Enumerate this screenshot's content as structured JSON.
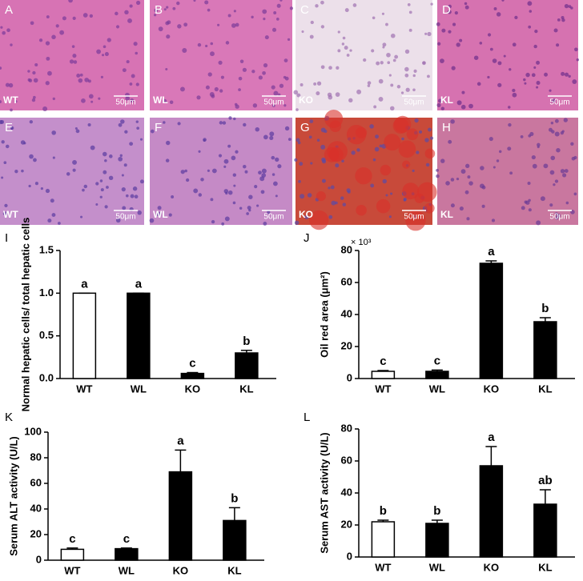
{
  "panels": [
    {
      "letter": "A",
      "group": "WT",
      "scale": "50μm"
    },
    {
      "letter": "B",
      "group": "WL",
      "scale": "50μm"
    },
    {
      "letter": "C",
      "group": "KO",
      "scale": "50μm"
    },
    {
      "letter": "D",
      "group": "KL",
      "scale": "50μm"
    },
    {
      "letter": "E",
      "group": "WT",
      "scale": "50μm"
    },
    {
      "letter": "F",
      "group": "WL",
      "scale": "50μm"
    },
    {
      "letter": "G",
      "group": "KO",
      "scale": "50μm"
    },
    {
      "letter": "H",
      "group": "KL",
      "scale": "50μm"
    }
  ],
  "chart_data": [
    {
      "type": "bar",
      "panel": "I",
      "ylabel": "Normal hepatic cells/ total hepatic cells",
      "categories": [
        "WT",
        "WL",
        "KO",
        "KL"
      ],
      "values": [
        1.0,
        1.0,
        0.06,
        0.3
      ],
      "errors": [
        0,
        0,
        0.01,
        0.03
      ],
      "letters": [
        "a",
        "a",
        "c",
        "b"
      ],
      "colors": [
        "#ffffff",
        "#000000",
        "#000000",
        "#000000"
      ],
      "ylim": [
        0,
        1.5
      ],
      "yticks": [
        {
          "value": 0,
          "label": "0.0"
        },
        0.5,
        {
          "value": 1,
          "label": "1.0"
        },
        1.5
      ]
    },
    {
      "type": "bar",
      "panel": "J",
      "ylabel": "Oil red area (μm²)",
      "multiplier": "× 10³",
      "categories": [
        "WT",
        "WL",
        "KO",
        "KL"
      ],
      "values": [
        4.5,
        4.5,
        72,
        35.5
      ],
      "errors": [
        0.5,
        0.8,
        1.5,
        2.5
      ],
      "letters": [
        "c",
        "c",
        "a",
        "b"
      ],
      "colors": [
        "#ffffff",
        "#000000",
        "#000000",
        "#000000"
      ],
      "ylim": [
        0,
        80
      ],
      "yticks": [
        0,
        20,
        40,
        60,
        80
      ]
    },
    {
      "type": "bar",
      "panel": "K",
      "ylabel": "Serum ALT activity (U/L)",
      "categories": [
        "WT",
        "WL",
        "KO",
        "KL"
      ],
      "values": [
        8.5,
        9,
        69,
        31
      ],
      "errors": [
        1,
        0.5,
        17,
        10
      ],
      "letters": [
        "c",
        "c",
        "a",
        "b"
      ],
      "colors": [
        "#ffffff",
        "#000000",
        "#000000",
        "#000000"
      ],
      "ylim": [
        0,
        100
      ],
      "yticks": [
        0,
        20,
        40,
        60,
        80,
        100
      ]
    },
    {
      "type": "bar",
      "panel": "L",
      "ylabel": "Serum AST activity (U/L)",
      "categories": [
        "WT",
        "WL",
        "KO",
        "KL"
      ],
      "values": [
        22,
        21,
        57,
        33
      ],
      "errors": [
        1,
        2,
        12,
        9
      ],
      "letters": [
        "b",
        "b",
        "a",
        "ab"
      ],
      "colors": [
        "#ffffff",
        "#000000",
        "#000000",
        "#000000"
      ],
      "ylim": [
        0,
        80
      ],
      "yticks": [
        0,
        20,
        40,
        60,
        80
      ]
    }
  ]
}
